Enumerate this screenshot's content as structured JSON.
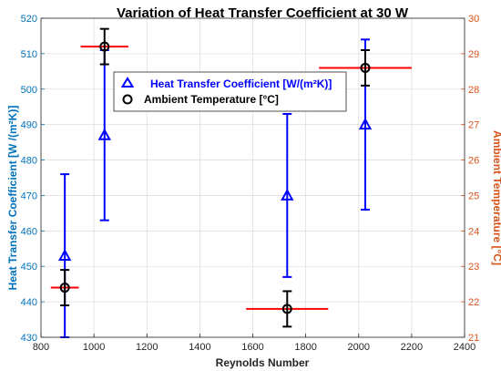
{
  "chart_data": {
    "type": "scatter",
    "title": "Variation of Heat Transfer Coefficient at 30 W",
    "xlabel": "Reynolds Number",
    "ylabel_left": "Heat Transfer Coefficient [W /(m²K)]",
    "ylabel_right": "Ambient Temperature [°C]",
    "xlim": [
      800,
      2400
    ],
    "ylim_left": [
      430,
      520
    ],
    "ylim_right": [
      21,
      30
    ],
    "xticks": [
      "800",
      "1000",
      "1200",
      "1400",
      "1600",
      "1800",
      "2000",
      "2200",
      "2400"
    ],
    "yticks_left": [
      "430",
      "440",
      "450",
      "460",
      "470",
      "480",
      "490",
      "500",
      "510",
      "520"
    ],
    "yticks_right": [
      "21",
      "22",
      "23",
      "24",
      "25",
      "26",
      "27",
      "28",
      "29",
      "30"
    ],
    "grid": true,
    "legend_position": "upper-left",
    "series": [
      {
        "name": "Heat Transfer Coefficient [W/(m²K)]",
        "axis": "left",
        "marker": "triangle",
        "color": "#0000ff",
        "x": [
          890,
          1040,
          1730,
          2025
        ],
        "y": [
          453,
          487,
          470,
          490
        ],
        "y_err": [
          23,
          24,
          23,
          24
        ],
        "x_err": [
          0,
          0,
          0,
          0
        ]
      },
      {
        "name": "Ambient Temperature [°C]",
        "axis": "right",
        "marker": "circle",
        "color": "#000000",
        "x": [
          890,
          1040,
          1730,
          2025
        ],
        "y": [
          22.4,
          29.2,
          21.8,
          28.6
        ],
        "y_err": [
          0.5,
          0.5,
          0.5,
          0.5
        ],
        "x_err": [
          53,
          90,
          155,
          175
        ]
      }
    ],
    "x_err_color": "#ff0000",
    "left_axis_color": "#0072bd",
    "right_axis_color": "#d95319"
  }
}
